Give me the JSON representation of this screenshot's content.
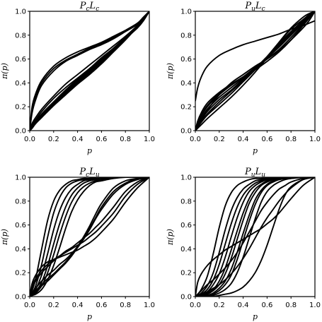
{
  "chart_data": [
    {
      "type": "line",
      "title": {
        "main": "P",
        "sub1": "c",
        "mid": "L",
        "sub2": "c"
      },
      "xlabel": "p",
      "ylabel": "π(p)",
      "xlim": [
        0,
        1
      ],
      "ylim": [
        0,
        1
      ],
      "xticks": [
        "0.0",
        "0.2",
        "0.4",
        "0.6",
        "0.8",
        "1.0"
      ],
      "yticks": [
        "0.0",
        "0.2",
        "0.4",
        "0.6",
        "0.8",
        "1.0"
      ],
      "x": [
        0,
        0.02,
        0.05,
        0.1,
        0.2,
        0.3,
        0.4,
        0.5,
        0.6,
        0.7,
        0.8,
        0.9,
        0.95,
        1.0
      ],
      "series": [
        {
          "values": [
            0,
            0.2,
            0.31,
            0.42,
            0.54,
            0.61,
            0.66,
            0.7,
            0.74,
            0.79,
            0.84,
            0.89,
            0.94,
            1.0
          ]
        },
        {
          "values": [
            0,
            0.18,
            0.29,
            0.4,
            0.52,
            0.59,
            0.64,
            0.69,
            0.73,
            0.78,
            0.84,
            0.9,
            0.95,
            1.0
          ]
        },
        {
          "values": [
            0,
            0.15,
            0.26,
            0.38,
            0.5,
            0.58,
            0.63,
            0.68,
            0.72,
            0.77,
            0.83,
            0.89,
            0.94,
            1.0
          ]
        },
        {
          "values": [
            0,
            0.06,
            0.11,
            0.18,
            0.29,
            0.39,
            0.47,
            0.55,
            0.63,
            0.71,
            0.79,
            0.88,
            0.93,
            1.0
          ]
        },
        {
          "values": [
            0,
            0.05,
            0.09,
            0.16,
            0.27,
            0.36,
            0.44,
            0.52,
            0.61,
            0.69,
            0.78,
            0.87,
            0.93,
            1.0
          ]
        },
        {
          "values": [
            0,
            0.04,
            0.08,
            0.14,
            0.24,
            0.33,
            0.42,
            0.5,
            0.59,
            0.68,
            0.77,
            0.87,
            0.93,
            1.0
          ]
        },
        {
          "values": [
            0,
            0.03,
            0.07,
            0.13,
            0.23,
            0.32,
            0.41,
            0.49,
            0.58,
            0.67,
            0.77,
            0.86,
            0.92,
            1.0
          ]
        },
        {
          "values": [
            0,
            0.03,
            0.06,
            0.12,
            0.22,
            0.31,
            0.4,
            0.48,
            0.57,
            0.67,
            0.77,
            0.87,
            0.93,
            1.0
          ]
        },
        {
          "values": [
            0,
            0.02,
            0.06,
            0.11,
            0.21,
            0.3,
            0.39,
            0.47,
            0.56,
            0.66,
            0.76,
            0.87,
            0.93,
            1.0
          ]
        },
        {
          "values": [
            0,
            0.03,
            0.07,
            0.13,
            0.24,
            0.34,
            0.43,
            0.51,
            0.6,
            0.69,
            0.78,
            0.88,
            0.94,
            1.0
          ]
        }
      ]
    },
    {
      "type": "line",
      "title": {
        "main": "P",
        "sub1": "u",
        "mid": "L",
        "sub2": "c"
      },
      "xlabel": "p",
      "ylabel": "π(p)",
      "xlim": [
        0,
        1
      ],
      "ylim": [
        0,
        1
      ],
      "xticks": [
        "0.0",
        "0.2",
        "0.4",
        "0.6",
        "0.8",
        "1.0"
      ],
      "yticks": [
        "0.0",
        "0.2",
        "0.4",
        "0.6",
        "0.8",
        "1.0"
      ],
      "x": [
        0,
        0.02,
        0.05,
        0.1,
        0.2,
        0.3,
        0.4,
        0.5,
        0.6,
        0.7,
        0.8,
        0.9,
        0.95,
        1.0
      ],
      "series": [
        {
          "values": [
            0.25,
            0.36,
            0.45,
            0.54,
            0.63,
            0.68,
            0.72,
            0.75,
            0.78,
            0.81,
            0.85,
            0.88,
            0.9,
            0.92
          ]
        },
        {
          "values": [
            0,
            0.08,
            0.15,
            0.23,
            0.32,
            0.39,
            0.45,
            0.51,
            0.58,
            0.66,
            0.76,
            0.88,
            0.94,
            1.0
          ]
        },
        {
          "values": [
            0,
            0.07,
            0.13,
            0.21,
            0.31,
            0.38,
            0.45,
            0.52,
            0.6,
            0.68,
            0.78,
            0.89,
            0.95,
            1.0
          ]
        },
        {
          "values": [
            0,
            0.06,
            0.12,
            0.2,
            0.3,
            0.38,
            0.45,
            0.53,
            0.61,
            0.7,
            0.8,
            0.9,
            0.95,
            1.0
          ]
        },
        {
          "values": [
            0,
            0.05,
            0.1,
            0.18,
            0.28,
            0.36,
            0.44,
            0.52,
            0.61,
            0.71,
            0.81,
            0.91,
            0.96,
            1.0
          ]
        },
        {
          "values": [
            0,
            0.04,
            0.09,
            0.16,
            0.26,
            0.34,
            0.43,
            0.52,
            0.62,
            0.72,
            0.82,
            0.91,
            0.96,
            1.0
          ]
        },
        {
          "values": [
            0,
            0.03,
            0.08,
            0.14,
            0.24,
            0.33,
            0.42,
            0.52,
            0.62,
            0.73,
            0.83,
            0.92,
            0.96,
            1.0
          ]
        },
        {
          "values": [
            0,
            0.03,
            0.07,
            0.13,
            0.22,
            0.31,
            0.41,
            0.51,
            0.62,
            0.74,
            0.85,
            0.93,
            0.97,
            1.0
          ]
        },
        {
          "values": [
            0,
            0.02,
            0.05,
            0.1,
            0.19,
            0.28,
            0.38,
            0.49,
            0.61,
            0.74,
            0.86,
            0.95,
            0.98,
            1.0
          ]
        },
        {
          "values": [
            0,
            0.04,
            0.09,
            0.17,
            0.3,
            0.4,
            0.47,
            0.54,
            0.6,
            0.67,
            0.76,
            0.86,
            0.92,
            1.0
          ]
        }
      ]
    },
    {
      "type": "line",
      "title": {
        "main": "P",
        "sub1": "c",
        "mid": "L",
        "sub2": "u"
      },
      "xlabel": "p",
      "ylabel": "π(p)",
      "xlim": [
        0,
        1
      ],
      "ylim": [
        0,
        1
      ],
      "xticks": [
        "0.0",
        "0.2",
        "0.4",
        "0.6",
        "0.8",
        "1.0"
      ],
      "yticks": [
        "0.0",
        "0.2",
        "0.4",
        "0.6",
        "0.8",
        "1.0"
      ],
      "x": [
        0,
        0.02,
        0.05,
        0.1,
        0.15,
        0.2,
        0.25,
        0.3,
        0.35,
        0.4,
        0.45,
        0.5,
        0.55,
        0.6,
        0.7,
        0.8,
        0.9,
        1.0
      ],
      "series": [
        {
          "values": [
            0,
            0.05,
            0.15,
            0.4,
            0.64,
            0.8,
            0.89,
            0.94,
            0.97,
            0.98,
            0.99,
            0.99,
            1.0,
            1.0,
            1.0,
            1.0,
            1.0,
            1.0
          ]
        },
        {
          "values": [
            0,
            0.03,
            0.09,
            0.27,
            0.5,
            0.7,
            0.83,
            0.91,
            0.95,
            0.97,
            0.98,
            0.99,
            1.0,
            1.0,
            1.0,
            1.0,
            1.0,
            1.0
          ]
        },
        {
          "values": [
            0,
            0.02,
            0.06,
            0.18,
            0.36,
            0.56,
            0.72,
            0.83,
            0.9,
            0.94,
            0.97,
            0.98,
            0.99,
            1.0,
            1.0,
            1.0,
            1.0,
            1.0
          ]
        },
        {
          "values": [
            0,
            0.01,
            0.04,
            0.12,
            0.26,
            0.44,
            0.61,
            0.75,
            0.85,
            0.91,
            0.95,
            0.97,
            0.98,
            0.99,
            1.0,
            1.0,
            1.0,
            1.0
          ]
        },
        {
          "values": [
            0,
            0.01,
            0.03,
            0.09,
            0.2,
            0.35,
            0.52,
            0.67,
            0.79,
            0.87,
            0.92,
            0.95,
            0.97,
            0.98,
            1.0,
            1.0,
            1.0,
            1.0
          ]
        },
        {
          "values": [
            0,
            0.01,
            0.02,
            0.06,
            0.14,
            0.26,
            0.41,
            0.57,
            0.71,
            0.81,
            0.88,
            0.93,
            0.96,
            0.97,
            0.99,
            1.0,
            1.0,
            1.0
          ]
        },
        {
          "values": [
            0,
            0.11,
            0.18,
            0.25,
            0.29,
            0.31,
            0.33,
            0.35,
            0.37,
            0.39,
            0.42,
            0.45,
            0.49,
            0.54,
            0.65,
            0.79,
            0.91,
            1.0
          ]
        },
        {
          "values": [
            0,
            0.09,
            0.15,
            0.22,
            0.27,
            0.31,
            0.34,
            0.37,
            0.4,
            0.43,
            0.46,
            0.5,
            0.54,
            0.59,
            0.7,
            0.84,
            0.94,
            1.0
          ]
        },
        {
          "values": [
            0,
            0.07,
            0.13,
            0.2,
            0.25,
            0.3,
            0.34,
            0.38,
            0.41,
            0.45,
            0.49,
            0.53,
            0.58,
            0.63,
            0.75,
            0.88,
            0.96,
            1.0
          ]
        },
        {
          "values": [
            0,
            0.03,
            0.07,
            0.13,
            0.18,
            0.22,
            0.27,
            0.31,
            0.36,
            0.42,
            0.49,
            0.57,
            0.66,
            0.75,
            0.88,
            0.95,
            0.99,
            1.0
          ]
        },
        {
          "values": [
            0,
            0.02,
            0.05,
            0.1,
            0.15,
            0.19,
            0.24,
            0.29,
            0.35,
            0.42,
            0.5,
            0.59,
            0.69,
            0.78,
            0.91,
            0.97,
            0.99,
            1.0
          ]
        },
        {
          "values": [
            0,
            0.02,
            0.04,
            0.09,
            0.13,
            0.18,
            0.23,
            0.28,
            0.34,
            0.41,
            0.48,
            0.56,
            0.65,
            0.73,
            0.86,
            0.94,
            0.98,
            1.0
          ]
        }
      ]
    },
    {
      "type": "line",
      "title": {
        "main": "P",
        "sub1": "u",
        "mid": "L",
        "sub2": "u"
      },
      "xlabel": "p",
      "ylabel": "π(p)",
      "xlim": [
        0,
        1
      ],
      "ylim": [
        0,
        1
      ],
      "xticks": [
        "0.0",
        "0.2",
        "0.4",
        "0.6",
        "0.8",
        "1.0"
      ],
      "yticks": [
        "0.0",
        "0.2",
        "0.4",
        "0.6",
        "0.8",
        "1.0"
      ],
      "x": [
        0,
        0.02,
        0.05,
        0.1,
        0.15,
        0.2,
        0.25,
        0.3,
        0.35,
        0.4,
        0.45,
        0.5,
        0.55,
        0.6,
        0.65,
        0.7,
        0.75,
        0.8,
        0.9,
        1.0
      ],
      "series": [
        {
          "values": [
            0,
            0.02,
            0.06,
            0.17,
            0.36,
            0.58,
            0.76,
            0.87,
            0.93,
            0.96,
            0.98,
            0.99,
            0.99,
            1.0,
            1.0,
            1.0,
            1.0,
            1.0,
            1.0,
            1.0
          ]
        },
        {
          "values": [
            0,
            0.01,
            0.03,
            0.09,
            0.2,
            0.37,
            0.56,
            0.72,
            0.83,
            0.9,
            0.94,
            0.97,
            0.98,
            0.99,
            1.0,
            1.0,
            1.0,
            1.0,
            1.0,
            1.0
          ]
        },
        {
          "values": [
            0,
            0.01,
            0.02,
            0.06,
            0.14,
            0.27,
            0.44,
            0.61,
            0.75,
            0.85,
            0.91,
            0.95,
            0.97,
            0.98,
            0.99,
            1.0,
            1.0,
            1.0,
            1.0,
            1.0
          ]
        },
        {
          "values": [
            0,
            0.0,
            0.01,
            0.04,
            0.1,
            0.19,
            0.33,
            0.5,
            0.66,
            0.79,
            0.88,
            0.93,
            0.96,
            0.98,
            0.99,
            0.99,
            1.0,
            1.0,
            1.0,
            1.0
          ]
        },
        {
          "values": [
            0,
            0.0,
            0.01,
            0.03,
            0.06,
            0.13,
            0.24,
            0.39,
            0.55,
            0.7,
            0.82,
            0.9,
            0.94,
            0.97,
            0.98,
            0.99,
            1.0,
            1.0,
            1.0,
            1.0
          ]
        },
        {
          "values": [
            0,
            0.0,
            0.01,
            0.02,
            0.05,
            0.1,
            0.19,
            0.32,
            0.48,
            0.64,
            0.78,
            0.87,
            0.93,
            0.96,
            0.98,
            0.99,
            0.99,
            1.0,
            1.0,
            1.0
          ]
        },
        {
          "values": [
            0,
            0.0,
            0.0,
            0.01,
            0.03,
            0.07,
            0.13,
            0.23,
            0.37,
            0.53,
            0.68,
            0.81,
            0.89,
            0.94,
            0.97,
            0.98,
            0.99,
            1.0,
            1.0,
            1.0
          ]
        },
        {
          "values": [
            0,
            0.0,
            0.0,
            0.01,
            0.02,
            0.05,
            0.1,
            0.18,
            0.31,
            0.47,
            0.63,
            0.77,
            0.87,
            0.93,
            0.96,
            0.98,
            0.99,
            0.99,
            1.0,
            1.0
          ]
        },
        {
          "values": [
            0,
            0.0,
            0.0,
            0.0,
            0.01,
            0.03,
            0.06,
            0.11,
            0.2,
            0.33,
            0.49,
            0.65,
            0.79,
            0.88,
            0.93,
            0.96,
            0.98,
            0.99,
            1.0,
            1.0
          ]
        },
        {
          "values": [
            0,
            0.0,
            0.0,
            0.0,
            0.0,
            0.01,
            0.02,
            0.03,
            0.05,
            0.08,
            0.13,
            0.2,
            0.3,
            0.43,
            0.58,
            0.73,
            0.85,
            0.92,
            0.98,
            1.0
          ]
        },
        {
          "values": [
            0,
            0.12,
            0.19,
            0.26,
            0.31,
            0.35,
            0.39,
            0.42,
            0.45,
            0.48,
            0.51,
            0.54,
            0.57,
            0.61,
            0.65,
            0.7,
            0.76,
            0.82,
            0.93,
            1.0
          ]
        },
        {
          "values": [
            0,
            0.02,
            0.05,
            0.1,
            0.14,
            0.19,
            0.24,
            0.3,
            0.37,
            0.45,
            0.54,
            0.63,
            0.72,
            0.79,
            0.85,
            0.9,
            0.93,
            0.96,
            0.99,
            1.0
          ]
        },
        {
          "values": [
            0,
            0.01,
            0.02,
            0.04,
            0.07,
            0.1,
            0.14,
            0.19,
            0.25,
            0.32,
            0.4,
            0.49,
            0.58,
            0.66,
            0.73,
            0.8,
            0.86,
            0.91,
            0.98,
            1.0
          ]
        }
      ]
    }
  ]
}
